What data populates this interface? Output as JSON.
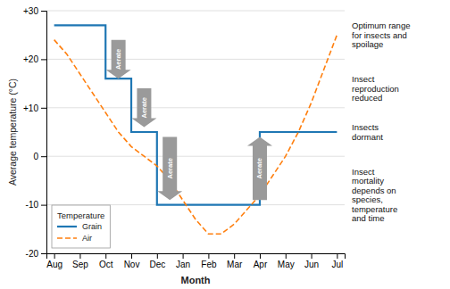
{
  "chart_data": {
    "type": "line",
    "xlabel": "Month",
    "ylabel": "Average temperature (°C)",
    "xlim": [
      -0.3,
      11.3
    ],
    "xticks": [
      {
        "value": 0,
        "label": "Aug"
      },
      {
        "value": 1,
        "label": "Sep"
      },
      {
        "value": 2,
        "label": "Oct"
      },
      {
        "value": 3,
        "label": "Nov"
      },
      {
        "value": 4,
        "label": "Dec"
      },
      {
        "value": 5,
        "label": "Jan"
      },
      {
        "value": 6,
        "label": "Feb"
      },
      {
        "value": 7,
        "label": "Mar"
      },
      {
        "value": 8,
        "label": "Apr"
      },
      {
        "value": 9,
        "label": "May"
      },
      {
        "value": 10,
        "label": "Jun"
      },
      {
        "value": 11,
        "label": "Jul"
      }
    ],
    "ylim": [
      -20,
      30
    ],
    "yticks": [
      -20,
      -10,
      0,
      {
        "value": 10,
        "label": "+10"
      },
      {
        "value": 20,
        "label": "+20"
      },
      {
        "value": 30,
        "label": "+30"
      }
    ],
    "grid": "y",
    "legend": "lower left",
    "legend_title": "Temperature",
    "series": [
      {
        "name": "Grain",
        "line_style": "solid",
        "x": [
          0,
          2,
          2,
          3,
          3,
          4,
          4,
          8,
          8,
          11
        ],
        "values": [
          27,
          27,
          16,
          16,
          5,
          5,
          -10,
          -10,
          5,
          5
        ]
      },
      {
        "name": "Air",
        "line_style": "dashed",
        "x": [
          0,
          0.5,
          1,
          1.5,
          2,
          2.5,
          3,
          3.5,
          4,
          4.5,
          5,
          5.5,
          6,
          6.5,
          7,
          7.5,
          8,
          8.5,
          9,
          9.5,
          10,
          10.5,
          11
        ],
        "values": [
          24,
          21,
          17,
          13,
          9,
          5,
          2,
          0,
          -2,
          -5,
          -9,
          -13,
          -16,
          -16,
          -14,
          -11,
          -8,
          -4,
          0,
          5,
          11,
          18,
          25
        ]
      }
    ],
    "arrows": [
      {
        "x": 2.5,
        "y_start": 24,
        "y_end": 16,
        "label": "Aerate"
      },
      {
        "x": 3.5,
        "y_start": 14,
        "y_end": 6,
        "label": "Aerate"
      },
      {
        "x": 4.5,
        "y_start": 4,
        "y_end": -9,
        "label": "Aerate"
      },
      {
        "x": 8.0,
        "y_start": -9,
        "y_end": 4,
        "label": "Aerate"
      }
    ],
    "annotations": [
      {
        "y": 25,
        "text": [
          "Optimum range",
          "for insects and",
          "spoilage"
        ]
      },
      {
        "y": 14,
        "text": [
          "Insect",
          "reproduction",
          "reduced"
        ]
      },
      {
        "y": 5,
        "text": [
          "Insects",
          "dormant"
        ]
      },
      {
        "y": -8,
        "text": [
          "Insect",
          "mortality",
          "depends on",
          "species,",
          "temperature",
          "and time"
        ]
      }
    ]
  }
}
